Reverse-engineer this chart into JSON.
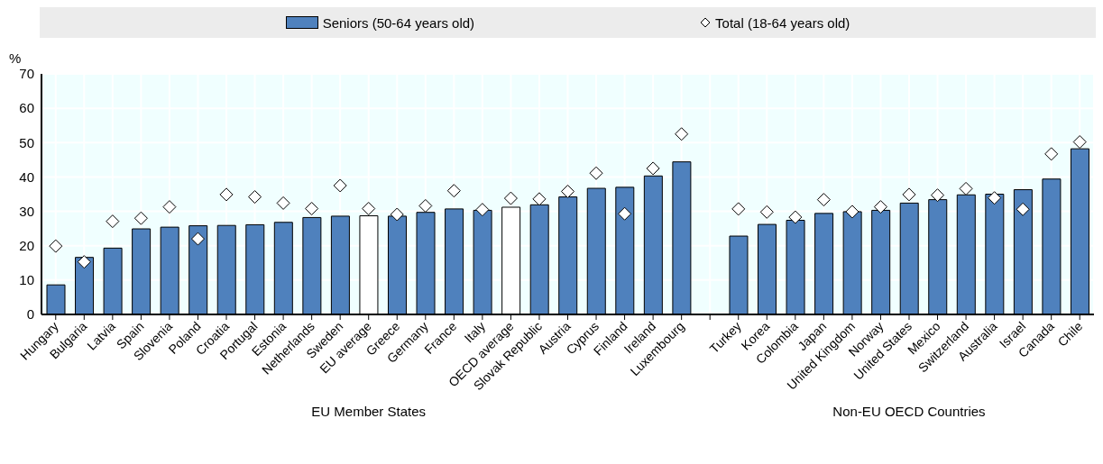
{
  "chart_data": {
    "type": "bar",
    "ylabel": "%",
    "categories": [
      "Hungary",
      "Bulgaria",
      "Latvia",
      "Spain",
      "Slovenia",
      "Poland",
      "Croatia",
      "Portugal",
      "Estonia",
      "Netherlands",
      "Sweden",
      "EU average",
      "Greece",
      "Germany",
      "France",
      "Italy",
      "OECD average",
      "Slovak Republic",
      "Austria",
      "Cyprus",
      "Finland",
      "Ireland",
      "Luxembourg",
      null,
      "Turkey",
      "Korea",
      "Colombia",
      "Japan",
      "United Kingdom",
      "Norway",
      "United States",
      "Mexico",
      "Switzerland",
      "Australia",
      "Israel",
      "Canada",
      "Chile"
    ],
    "series": [
      {
        "name": "Seniors (50-64 years old)",
        "color": "#4f81bd",
        "colors": [
          "#4f81bd",
          "#4f81bd",
          "#4f81bd",
          "#4f81bd",
          "#4f81bd",
          "#4f81bd",
          "#4f81bd",
          "#4f81bd",
          "#4f81bd",
          "#4f81bd",
          "#4f81bd",
          "#ffffff",
          "#4f81bd",
          "#4f81bd",
          "#4f81bd",
          "#4f81bd",
          "#ffffff",
          "#4f81bd",
          "#4f81bd",
          "#4f81bd",
          "#4f81bd",
          "#4f81bd",
          "#4f81bd",
          "#4f81bd",
          "#4f81bd",
          "#4f81bd",
          "#4f81bd",
          "#4f81bd",
          "#4f81bd",
          "#4f81bd",
          "#4f81bd",
          "#4f81bd",
          "#4f81bd",
          "#4f81bd",
          "#4f81bd",
          "#4f81bd",
          "#4f81bd"
        ],
        "values": [
          8.6,
          16.6,
          19.3,
          24.9,
          25.4,
          25.8,
          25.9,
          26.1,
          26.8,
          28.2,
          28.6,
          28.7,
          28.6,
          29.7,
          30.7,
          30.3,
          31.2,
          31.9,
          34.2,
          36.7,
          37.0,
          40.3,
          44.4,
          null,
          22.8,
          26.2,
          27.4,
          29.4,
          29.9,
          30.3,
          32.4,
          33.4,
          34.8,
          35.0,
          36.3,
          39.4,
          48.2
        ]
      },
      {
        "name": "Total (18-64 years old)",
        "type": "scatter",
        "marker": "diamond",
        "color": "#ffffff",
        "values": [
          19.9,
          15.3,
          27.1,
          28.0,
          31.3,
          22.0,
          34.9,
          34.2,
          32.4,
          30.8,
          37.5,
          30.8,
          29.1,
          31.6,
          36.0,
          30.5,
          33.8,
          33.6,
          35.8,
          41.1,
          29.3,
          42.5,
          52.5,
          null,
          30.7,
          29.8,
          28.3,
          33.4,
          29.9,
          31.3,
          34.9,
          34.7,
          36.6,
          33.9,
          30.6,
          46.7,
          50.2
        ]
      }
    ],
    "ylim": [
      0,
      70
    ],
    "yticks": [
      0,
      10,
      20,
      30,
      40,
      50,
      60,
      70
    ],
    "grid": true,
    "legend": "top",
    "annotations": [
      "EU Member States",
      "Non-EU OECD Countries"
    ]
  }
}
